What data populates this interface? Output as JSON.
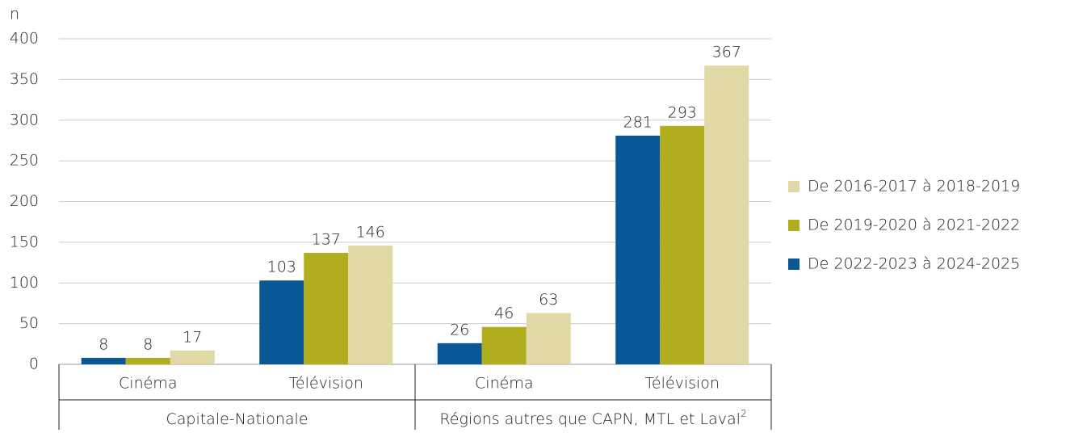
{
  "chart_data": {
    "type": "bar",
    "y_label": "n",
    "categories": [
      "Cinéma",
      "Télévision",
      "Cinéma",
      "Télévision"
    ],
    "groups": [
      {
        "label": "Capitale-Nationale",
        "span": 2
      },
      {
        "label": "Régions autres que CAPN, MTL et Laval",
        "note": "2",
        "span": 2
      }
    ],
    "series": [
      {
        "name": "De 2022-2023 à 2024-2025",
        "color": "#0a5796",
        "values": [
          8,
          103,
          26,
          281
        ]
      },
      {
        "name": "De 2019-2020 à 2021-2022",
        "color": "#b0ae1f",
        "values": [
          8,
          137,
          46,
          293
        ]
      },
      {
        "name": "De 2016-2017 à 2018-2019",
        "color": "#e0d9a6",
        "values": [
          17,
          146,
          63,
          367
        ]
      }
    ],
    "ylim": [
      0,
      400
    ],
    "yticks": [
      0,
      50,
      100,
      150,
      200,
      250,
      300,
      350,
      400
    ],
    "grid": true,
    "legend": "right",
    "data_labels": true
  }
}
